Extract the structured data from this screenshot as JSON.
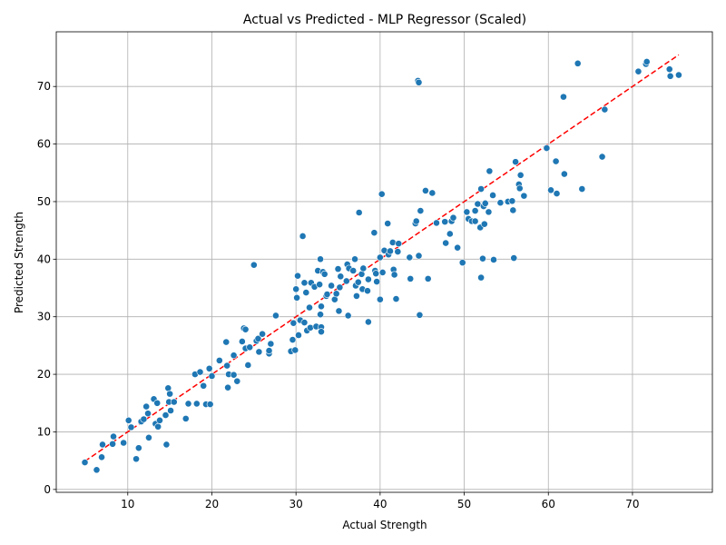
{
  "chart_data": {
    "type": "scatter",
    "title": "Actual vs Predicted - MLP Regressor (Scaled)",
    "xlabel": "Actual Strength",
    "ylabel": "Predicted Strength",
    "xlim": [
      1.5,
      79.5
    ],
    "ylim": [
      -0.5,
      79.5
    ],
    "xticks": [
      10,
      20,
      30,
      40,
      50,
      60,
      70
    ],
    "yticks": [
      0,
      10,
      20,
      30,
      40,
      50,
      60,
      70
    ],
    "grid": true,
    "point_color": "#1f77b4",
    "point_edge_color": "#ffffff",
    "reference_line": {
      "from": [
        4.9,
        4.9
      ],
      "to": [
        75.5,
        75.5
      ],
      "color": "#ff0000",
      "style": "dashed"
    },
    "points": [
      [
        4.9,
        4.7
      ],
      [
        6.3,
        3.4
      ],
      [
        6.9,
        5.6
      ],
      [
        7.0,
        7.8
      ],
      [
        8.2,
        7.9
      ],
      [
        8.3,
        9.2
      ],
      [
        9.5,
        8.1
      ],
      [
        10.1,
        12.0
      ],
      [
        10.4,
        10.8
      ],
      [
        11.0,
        5.3
      ],
      [
        11.3,
        7.2
      ],
      [
        11.6,
        11.8
      ],
      [
        11.9,
        12.2
      ],
      [
        12.2,
        14.4
      ],
      [
        12.4,
        13.2
      ],
      [
        12.5,
        9.0
      ],
      [
        13.1,
        15.7
      ],
      [
        13.3,
        11.4
      ],
      [
        13.5,
        15.0
      ],
      [
        13.6,
        10.9
      ],
      [
        13.8,
        12.0
      ],
      [
        14.5,
        12.9
      ],
      [
        14.6,
        7.8
      ],
      [
        14.8,
        17.6
      ],
      [
        14.9,
        15.2
      ],
      [
        15.0,
        16.6
      ],
      [
        15.1,
        13.7
      ],
      [
        15.5,
        15.2
      ],
      [
        16.9,
        12.3
      ],
      [
        17.2,
        14.9
      ],
      [
        18.0,
        20.0
      ],
      [
        18.2,
        14.9
      ],
      [
        18.6,
        20.4
      ],
      [
        19.0,
        18.0
      ],
      [
        19.3,
        14.8
      ],
      [
        19.7,
        21.0
      ],
      [
        19.8,
        14.8
      ],
      [
        20.0,
        19.7
      ],
      [
        20.9,
        22.4
      ],
      [
        21.7,
        25.6
      ],
      [
        21.8,
        21.5
      ],
      [
        21.9,
        17.7
      ],
      [
        22.0,
        20.0
      ],
      [
        22.6,
        23.3
      ],
      [
        22.6,
        19.9
      ],
      [
        23.0,
        18.8
      ],
      [
        23.6,
        25.7
      ],
      [
        23.8,
        28.0
      ],
      [
        24.0,
        24.5
      ],
      [
        24.0,
        27.8
      ],
      [
        24.3,
        21.6
      ],
      [
        24.5,
        24.7
      ],
      [
        25.0,
        39.0
      ],
      [
        25.3,
        25.8
      ],
      [
        25.5,
        26.2
      ],
      [
        25.6,
        23.9
      ],
      [
        26.0,
        27.0
      ],
      [
        26.8,
        23.6
      ],
      [
        26.8,
        24.1
      ],
      [
        27.0,
        25.3
      ],
      [
        27.6,
        30.2
      ],
      [
        29.4,
        24.0
      ],
      [
        29.6,
        26.0
      ],
      [
        29.7,
        28.9
      ],
      [
        29.9,
        24.2
      ],
      [
        30.0,
        34.8
      ],
      [
        30.1,
        33.3
      ],
      [
        30.2,
        37.1
      ],
      [
        30.3,
        26.8
      ],
      [
        30.5,
        29.4
      ],
      [
        30.8,
        44.0
      ],
      [
        31.0,
        35.9
      ],
      [
        31.0,
        29.0
      ],
      [
        31.2,
        34.2
      ],
      [
        31.3,
        27.6
      ],
      [
        31.6,
        31.6
      ],
      [
        31.7,
        28.1
      ],
      [
        31.8,
        35.9
      ],
      [
        32.2,
        35.2
      ],
      [
        32.4,
        28.3
      ],
      [
        32.6,
        38.0
      ],
      [
        32.8,
        35.6
      ],
      [
        32.9,
        40.0
      ],
      [
        32.9,
        30.4
      ],
      [
        33.0,
        31.8
      ],
      [
        33.0,
        28.2
      ],
      [
        33.0,
        27.4
      ],
      [
        33.2,
        37.8
      ],
      [
        33.4,
        37.4
      ],
      [
        33.6,
        33.6
      ],
      [
        33.7,
        33.9
      ],
      [
        34.2,
        35.4
      ],
      [
        34.6,
        33.0
      ],
      [
        34.8,
        34.0
      ],
      [
        35.0,
        38.3
      ],
      [
        35.1,
        31.0
      ],
      [
        35.2,
        35.1
      ],
      [
        35.3,
        37.0
      ],
      [
        36.0,
        36.2
      ],
      [
        36.1,
        39.1
      ],
      [
        36.2,
        30.2
      ],
      [
        36.3,
        38.4
      ],
      [
        36.8,
        38.0
      ],
      [
        37.0,
        40.0
      ],
      [
        37.1,
        35.4
      ],
      [
        37.2,
        33.6
      ],
      [
        37.4,
        36.0
      ],
      [
        37.5,
        48.1
      ],
      [
        37.8,
        37.4
      ],
      [
        37.9,
        34.8
      ],
      [
        38.0,
        38.4
      ],
      [
        38.5,
        34.5
      ],
      [
        38.6,
        29.1
      ],
      [
        38.6,
        36.5
      ],
      [
        39.3,
        44.6
      ],
      [
        39.4,
        38.0
      ],
      [
        39.5,
        37.5
      ],
      [
        39.6,
        36.1
      ],
      [
        40.0,
        33.0
      ],
      [
        40.0,
        40.3
      ],
      [
        40.2,
        51.3
      ],
      [
        40.3,
        37.7
      ],
      [
        40.5,
        41.5
      ],
      [
        40.9,
        46.2
      ],
      [
        41.0,
        40.8
      ],
      [
        41.2,
        41.4
      ],
      [
        41.5,
        42.9
      ],
      [
        41.6,
        38.2
      ],
      [
        41.7,
        37.3
      ],
      [
        41.9,
        33.1
      ],
      [
        42.1,
        41.3
      ],
      [
        42.2,
        42.7
      ],
      [
        43.5,
        40.3
      ],
      [
        43.6,
        36.6
      ],
      [
        44.2,
        46.2
      ],
      [
        44.3,
        46.6
      ],
      [
        44.5,
        71.0
      ],
      [
        44.6,
        70.7
      ],
      [
        44.6,
        40.6
      ],
      [
        44.7,
        30.3
      ],
      [
        44.8,
        48.4
      ],
      [
        45.4,
        51.9
      ],
      [
        45.7,
        36.6
      ],
      [
        46.2,
        51.5
      ],
      [
        46.7,
        46.3
      ],
      [
        47.7,
        46.5
      ],
      [
        47.8,
        42.8
      ],
      [
        48.3,
        44.4
      ],
      [
        48.5,
        46.6
      ],
      [
        48.7,
        47.2
      ],
      [
        49.2,
        42.0
      ],
      [
        49.8,
        39.4
      ],
      [
        50.3,
        48.2
      ],
      [
        50.5,
        47.0
      ],
      [
        50.9,
        46.6
      ],
      [
        51.3,
        48.4
      ],
      [
        51.3,
        46.6
      ],
      [
        51.6,
        49.6
      ],
      [
        51.9,
        45.5
      ],
      [
        52.0,
        52.2
      ],
      [
        52.0,
        36.8
      ],
      [
        52.2,
        40.1
      ],
      [
        52.3,
        49.2
      ],
      [
        52.4,
        46.1
      ],
      [
        52.5,
        49.7
      ],
      [
        52.9,
        48.2
      ],
      [
        53.0,
        55.3
      ],
      [
        53.4,
        51.1
      ],
      [
        53.5,
        39.9
      ],
      [
        54.3,
        49.8
      ],
      [
        55.2,
        50.0
      ],
      [
        55.7,
        50.1
      ],
      [
        55.8,
        48.5
      ],
      [
        55.9,
        40.2
      ],
      [
        56.1,
        56.9
      ],
      [
        56.5,
        53.0
      ],
      [
        56.6,
        52.3
      ],
      [
        56.7,
        54.6
      ],
      [
        57.1,
        51.0
      ],
      [
        59.8,
        59.3
      ],
      [
        60.3,
        52.0
      ],
      [
        60.9,
        57.0
      ],
      [
        61.0,
        51.4
      ],
      [
        61.8,
        68.2
      ],
      [
        61.9,
        54.8
      ],
      [
        63.5,
        74.0
      ],
      [
        64.0,
        52.2
      ],
      [
        66.4,
        57.8
      ],
      [
        66.7,
        66.0
      ],
      [
        70.7,
        72.6
      ],
      [
        71.6,
        73.9
      ],
      [
        71.7,
        74.3
      ],
      [
        74.4,
        73.0
      ],
      [
        74.5,
        71.8
      ],
      [
        75.5,
        72.0
      ]
    ]
  }
}
